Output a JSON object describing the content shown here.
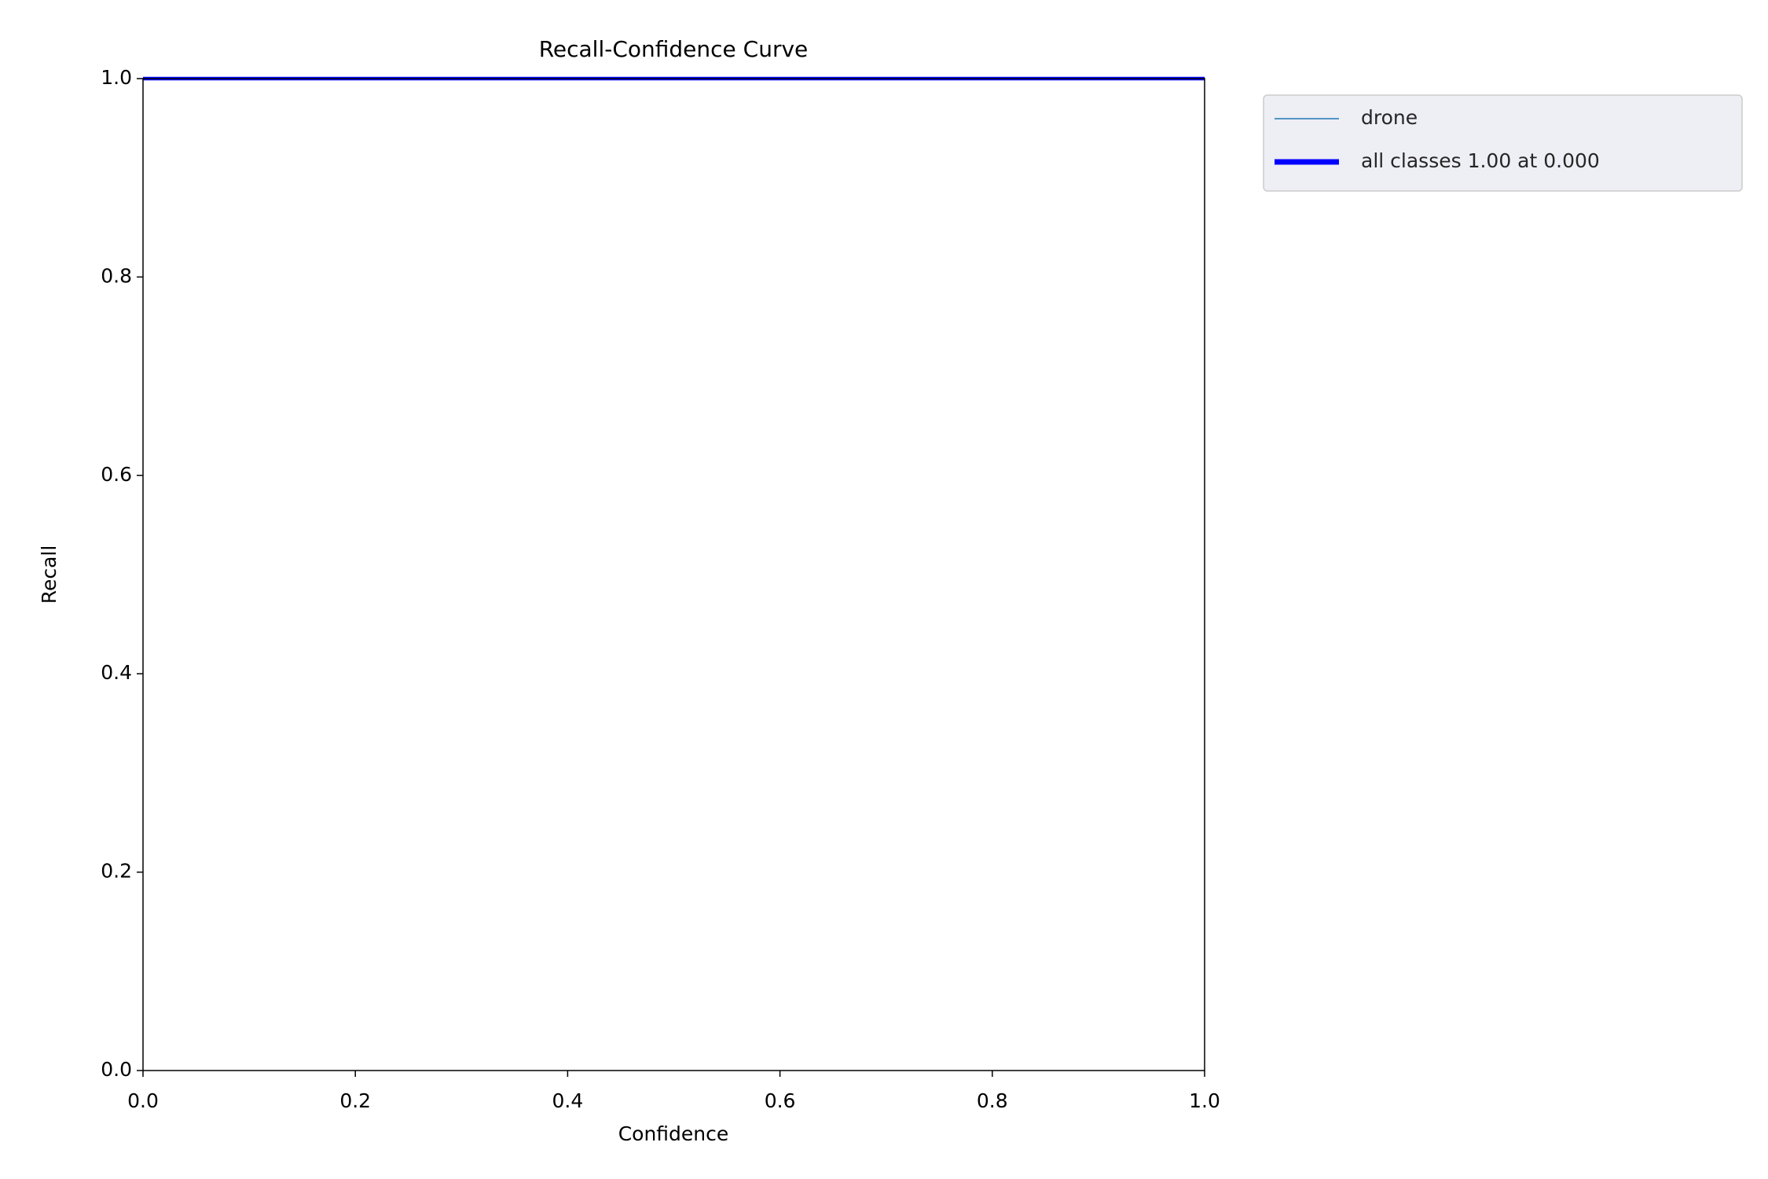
{
  "chart_data": {
    "type": "line",
    "title": "Recall-Confidence Curve",
    "x_label": "Confidence",
    "y_label": "Recall",
    "x": [
      0,
      1
    ],
    "series": [
      {
        "name": "drone",
        "color": "#1f77b4",
        "values": [
          1,
          1
        ]
      },
      {
        "name": "all classes 1.00 at 0.000",
        "color": "#0000ff",
        "values": [
          1,
          1
        ]
      }
    ],
    "xlim": [
      0,
      1
    ],
    "ylim": [
      0,
      1
    ],
    "xticks": [
      {
        "value": 0,
        "label": "0.0"
      },
      {
        "value": 0.2,
        "label": "0.2"
      },
      {
        "value": 0.4,
        "label": "0.4"
      },
      {
        "value": 0.6,
        "label": "0.6"
      },
      {
        "value": 0.8,
        "label": "0.8"
      },
      {
        "value": 1,
        "label": "1.0"
      }
    ],
    "yticks": [
      {
        "value": 0,
        "label": "0.0"
      },
      {
        "value": 0.2,
        "label": "0.2"
      },
      {
        "value": 0.4,
        "label": "0.4"
      },
      {
        "value": 0.6,
        "label": "0.6"
      },
      {
        "value": 0.8,
        "label": "0.8"
      },
      {
        "value": 1,
        "label": "1.0"
      }
    ],
    "grid": false,
    "legend": "outside upper right"
  }
}
